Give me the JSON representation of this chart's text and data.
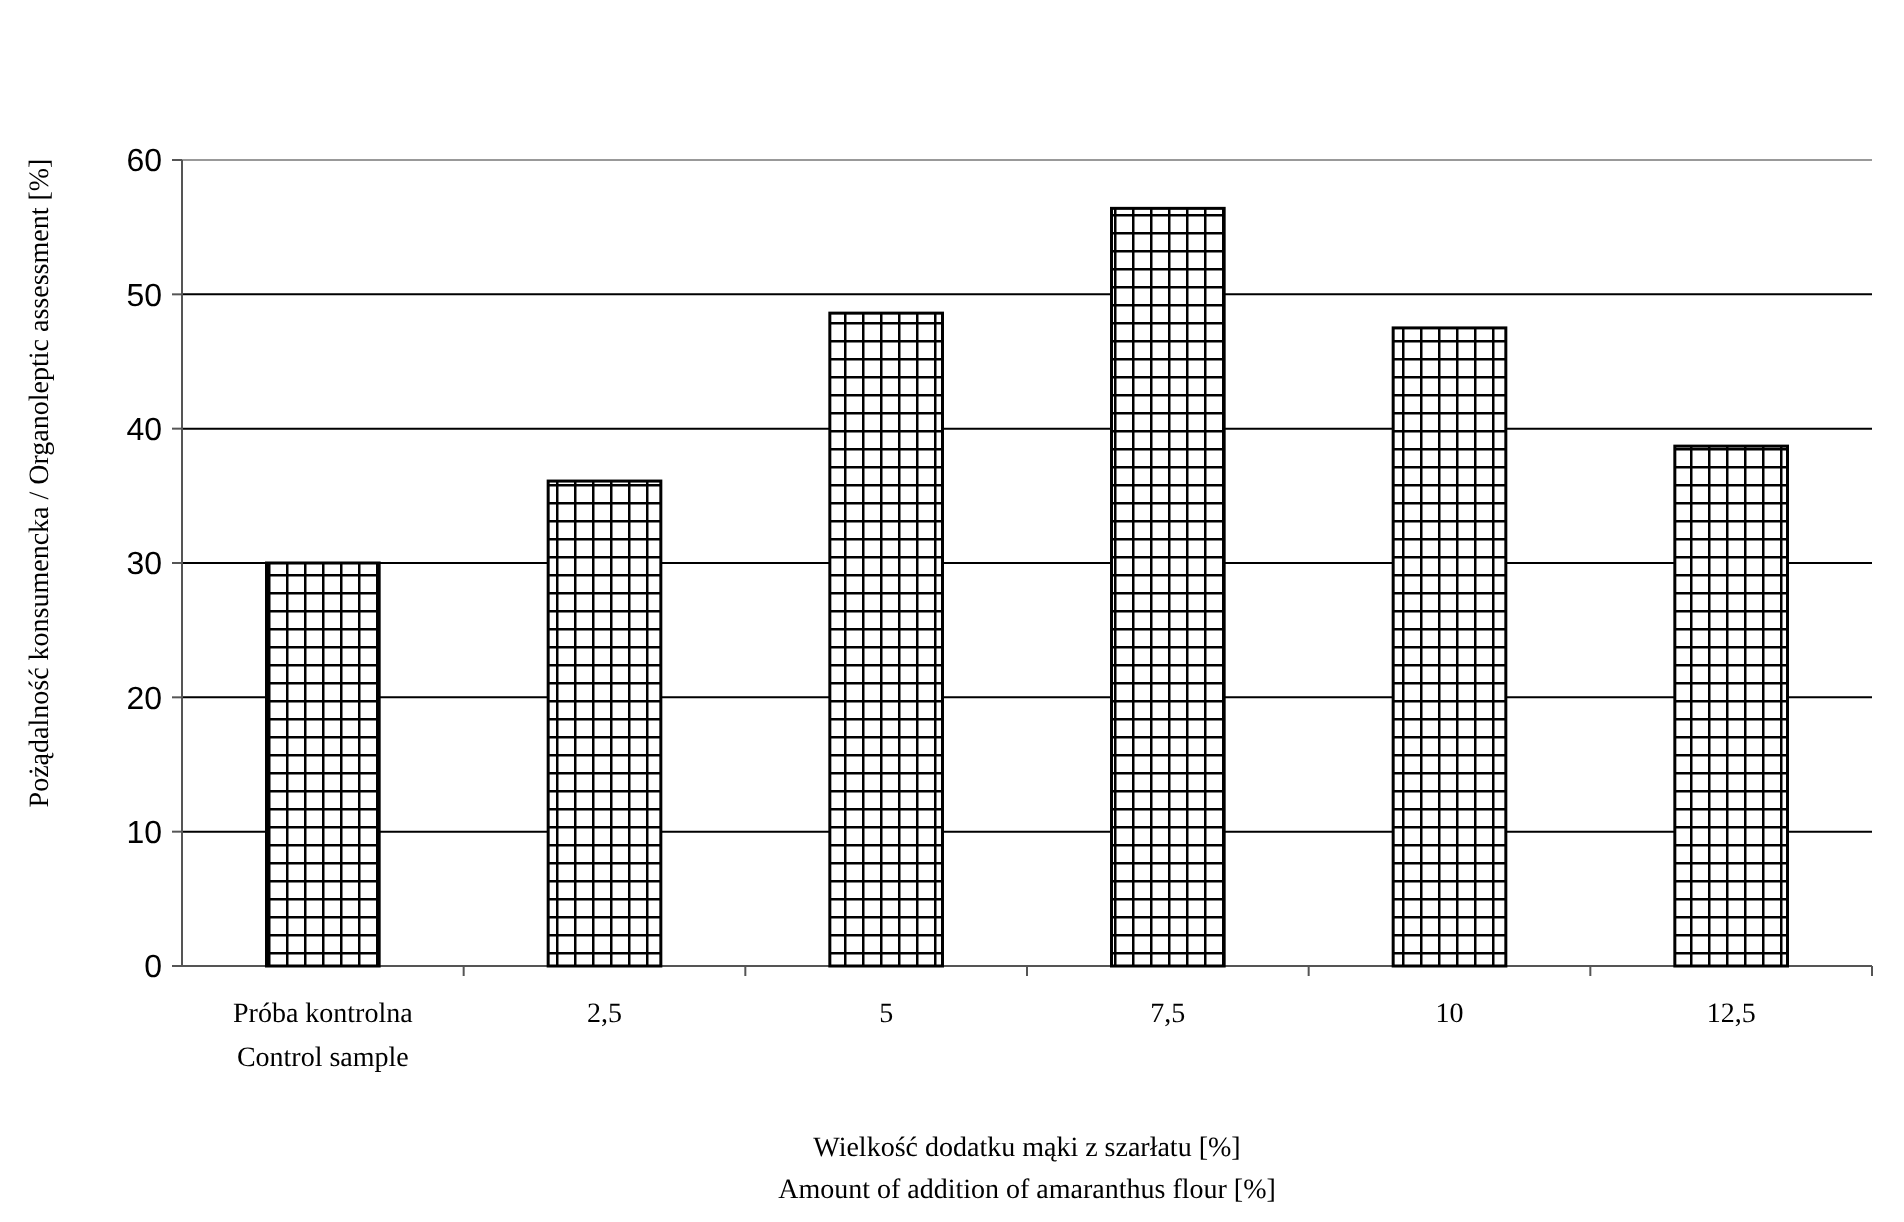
{
  "chart_data": {
    "type": "bar",
    "xlabel": "Wielkość dodatku mąki z szarłatu [%]\nAmount of addition of amaranthus flour [%]",
    "ylabel": "Pożądalność konsumencka / Organoleptic assessment [%]",
    "categories": [
      "Próba kontrolna\nControl sample",
      "2,5",
      "5",
      "7,5",
      "10",
      "12,5"
    ],
    "values": [
      30,
      36.1,
      48.6,
      56.4,
      47.5,
      38.7
    ],
    "color": "#000000",
    "ylim": [
      0,
      60
    ],
    "yticks": [
      0,
      10,
      20,
      30,
      40,
      50,
      60
    ],
    "grid": "y"
  }
}
